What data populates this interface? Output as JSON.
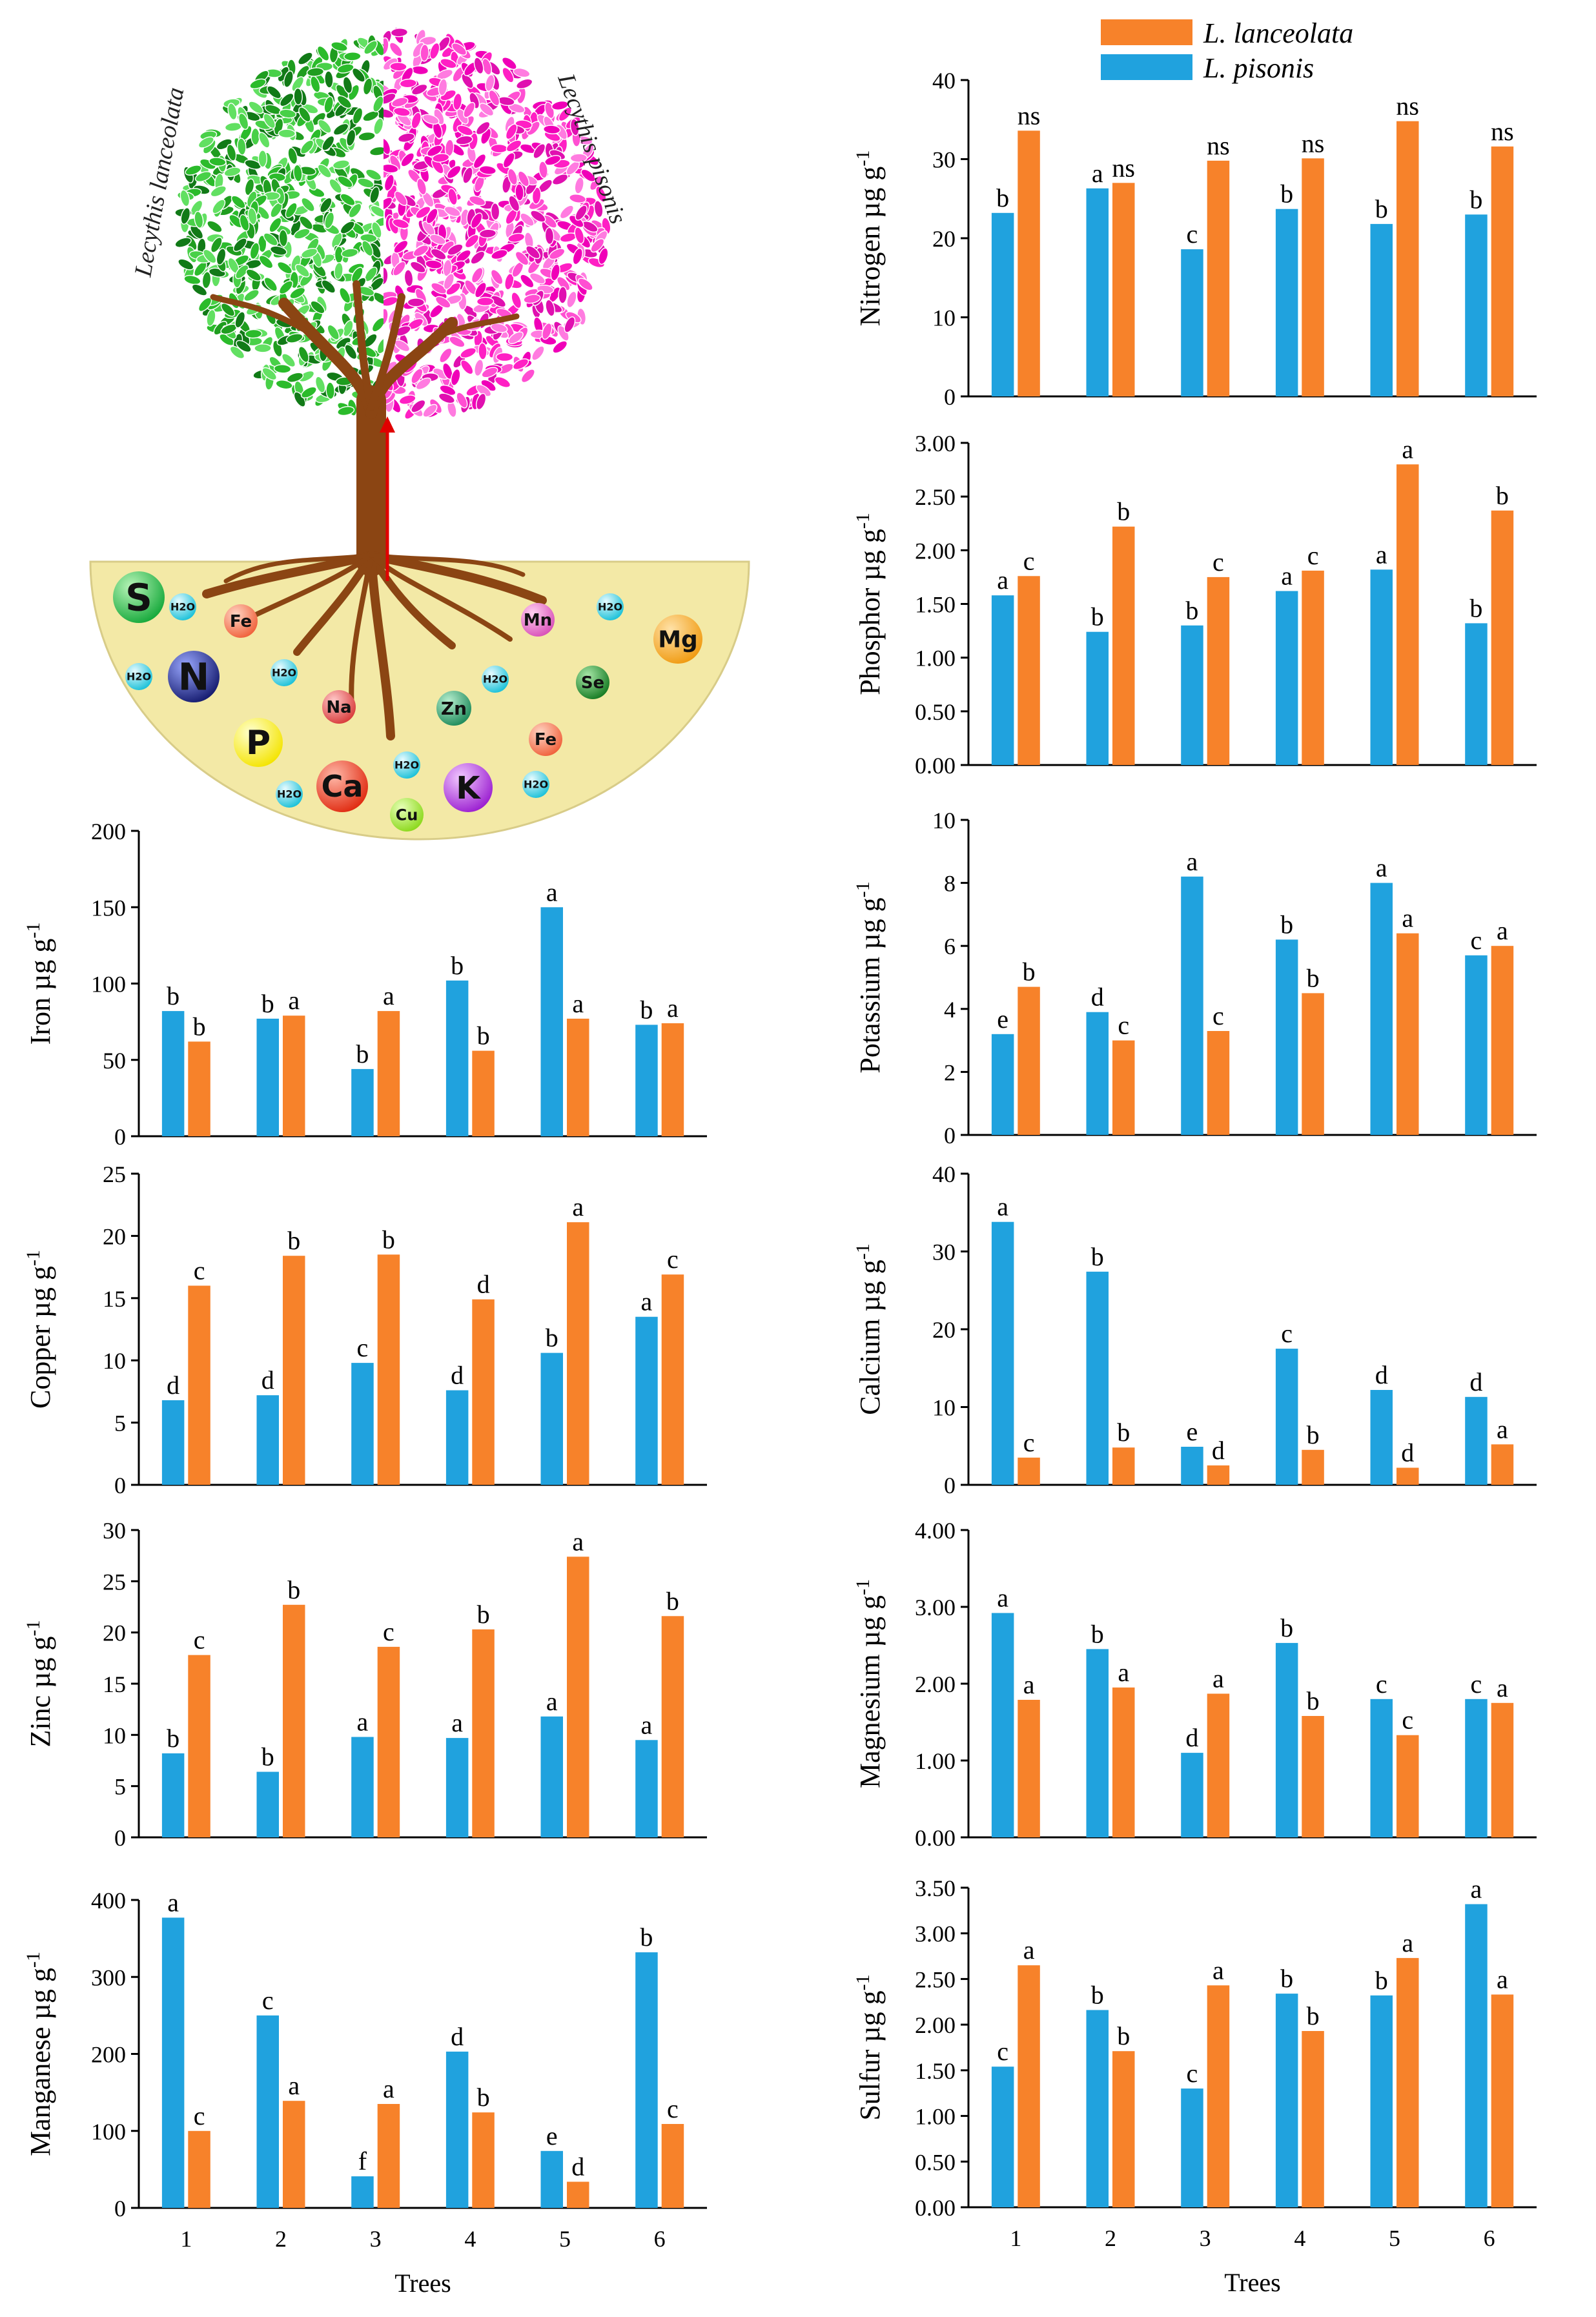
{
  "colors": {
    "lanceolata": "#F7822A",
    "pisonis": "#20A2DE",
    "soil": "#F3E9A6",
    "green_leaves": "#2BBB2B",
    "pink_leaves": "#FF1FC4",
    "trunk": "#8B4513"
  },
  "legend": {
    "lanceolata": "L. lanceolata",
    "pisonis": "L. pisonis"
  },
  "illustration": {
    "left_species": "Lecythis lanceolata",
    "right_species": "Lecythis pisonis",
    "elements": [
      "S",
      "H2O",
      "Fe",
      "N",
      "H2O",
      "H2O",
      "Na",
      "Zn",
      "H2O",
      "Mn",
      "Se",
      "Mg",
      "P",
      "Ca",
      "H2O",
      "K",
      "H2O",
      "Fe",
      "Cu",
      "H2O",
      "H2O"
    ]
  },
  "chart_data": [
    {
      "id": "nitrogen",
      "type": "bar",
      "ylabel": "Nitrogen µg g",
      "ylabel_sup": "-1",
      "ylim": [
        0,
        40
      ],
      "yticks": [
        "0",
        "10",
        "20",
        "30",
        "40"
      ],
      "categories": [
        "1",
        "2",
        "3",
        "4",
        "5",
        "6"
      ],
      "xlabel": "",
      "series": [
        {
          "name": "L. pisonis",
          "values": [
            23.2,
            26.3,
            18.6,
            23.7,
            21.8,
            23
          ]
        },
        {
          "name": "L. lanceolata",
          "values": [
            33.6,
            27,
            29.8,
            30.1,
            34.8,
            31.6
          ]
        }
      ],
      "letters_pisonis": [
        "b",
        "a",
        "c",
        "b",
        "b",
        "b"
      ],
      "letters_lanceolata": [
        "ns",
        "ns",
        "ns",
        "ns",
        "ns",
        "ns"
      ]
    },
    {
      "id": "phosphor",
      "type": "bar",
      "ylabel": "Phosphor µg g",
      "ylabel_sup": "-1",
      "ylim": [
        0,
        3
      ],
      "yticks": [
        "0.00",
        "0.50",
        "1.00",
        "1.50",
        "2.00",
        "2.50",
        "3.00"
      ],
      "categories": [
        "1",
        "2",
        "3",
        "4",
        "5",
        "6"
      ],
      "xlabel": "",
      "series": [
        {
          "name": "L. pisonis",
          "values": [
            1.58,
            1.24,
            1.3,
            1.62,
            1.82,
            1.32
          ]
        },
        {
          "name": "L. lanceolata",
          "values": [
            1.76,
            2.22,
            1.75,
            1.81,
            2.8,
            2.37
          ]
        }
      ],
      "letters_pisonis": [
        "a",
        "b",
        "b",
        "a",
        "a",
        "b"
      ],
      "letters_lanceolata": [
        "c",
        "b",
        "c",
        "c",
        "a",
        "b"
      ]
    },
    {
      "id": "iron",
      "type": "bar",
      "ylabel": "Iron µg g",
      "ylabel_sup": "-1",
      "ylim": [
        0,
        200
      ],
      "yticks": [
        "0",
        "50",
        "100",
        "150",
        "200"
      ],
      "categories": [
        "1",
        "2",
        "3",
        "4",
        "5",
        "6"
      ],
      "xlabel": "",
      "series": [
        {
          "name": "L. pisonis",
          "values": [
            82,
            77,
            44,
            102,
            150,
            73
          ]
        },
        {
          "name": "L. lanceolata",
          "values": [
            62,
            79,
            82,
            56,
            77,
            74
          ]
        }
      ],
      "letters_pisonis": [
        "b",
        "b",
        "b",
        "b",
        "a",
        "b"
      ],
      "letters_lanceolata": [
        "b",
        "a",
        "a",
        "b",
        "a",
        "a"
      ]
    },
    {
      "id": "potassium",
      "type": "bar",
      "ylabel": "Potassium µg g",
      "ylabel_sup": "-1",
      "ylim": [
        0,
        10
      ],
      "yticks": [
        "0",
        "2",
        "4",
        "6",
        "8",
        "10"
      ],
      "categories": [
        "1",
        "2",
        "3",
        "4",
        "5",
        "6"
      ],
      "xlabel": "",
      "series": [
        {
          "name": "L. pisonis",
          "values": [
            3.2,
            3.9,
            8.2,
            6.2,
            8,
            5.7
          ]
        },
        {
          "name": "L. lanceolata",
          "values": [
            4.7,
            3,
            3.3,
            4.5,
            6.4,
            6
          ]
        }
      ],
      "letters_pisonis": [
        "e",
        "d",
        "a",
        "b",
        "a",
        "c"
      ],
      "letters_lanceolata": [
        "b",
        "c",
        "c",
        "b",
        "a",
        "a"
      ]
    },
    {
      "id": "copper",
      "type": "bar",
      "ylabel": "Copper µg g",
      "ylabel_sup": "-1",
      "ylim": [
        0,
        25
      ],
      "yticks": [
        "0",
        "5",
        "10",
        "15",
        "20",
        "25"
      ],
      "categories": [
        "1",
        "2",
        "3",
        "4",
        "5",
        "6"
      ],
      "xlabel": "",
      "series": [
        {
          "name": "L. pisonis",
          "values": [
            6.8,
            7.2,
            9.8,
            7.6,
            10.6,
            13.5
          ]
        },
        {
          "name": "L. lanceolata",
          "values": [
            16,
            18.4,
            18.5,
            14.9,
            21.1,
            16.9
          ]
        }
      ],
      "letters_pisonis": [
        "d",
        "d",
        "c",
        "d",
        "b",
        "a"
      ],
      "letters_lanceolata": [
        "c",
        "b",
        "b",
        "d",
        "a",
        "c"
      ]
    },
    {
      "id": "calcium",
      "type": "bar",
      "ylabel": "Calcium µg g",
      "ylabel_sup": "-1",
      "ylim": [
        0,
        40
      ],
      "yticks": [
        "0",
        "10",
        "20",
        "30",
        "40"
      ],
      "categories": [
        "1",
        "2",
        "3",
        "4",
        "5",
        "6"
      ],
      "xlabel": "",
      "series": [
        {
          "name": "L. pisonis",
          "values": [
            33.8,
            27.4,
            4.9,
            17.5,
            12.2,
            11.3
          ]
        },
        {
          "name": "L. lanceolata",
          "values": [
            3.5,
            4.8,
            2.5,
            4.5,
            2.2,
            5.2
          ]
        }
      ],
      "letters_pisonis": [
        "a",
        "b",
        "e",
        "c",
        "d",
        "d"
      ],
      "letters_lanceolata": [
        "c",
        "b",
        "d",
        "b",
        "d",
        "a"
      ]
    },
    {
      "id": "zinc",
      "type": "bar",
      "ylabel": "Zinc µg g",
      "ylabel_sup": "-1",
      "ylim": [
        0,
        30
      ],
      "yticks": [
        "0",
        "5",
        "10",
        "15",
        "20",
        "25",
        "30"
      ],
      "categories": [
        "1",
        "2",
        "3",
        "4",
        "5",
        "6"
      ],
      "xlabel": "",
      "series": [
        {
          "name": "L. pisonis",
          "values": [
            8.2,
            6.4,
            9.8,
            9.7,
            11.8,
            9.5
          ]
        },
        {
          "name": "L. lanceolata",
          "values": [
            17.8,
            22.7,
            18.6,
            20.3,
            27.4,
            21.6
          ]
        }
      ],
      "letters_pisonis": [
        "b",
        "b",
        "a",
        "a",
        "a",
        "a"
      ],
      "letters_lanceolata": [
        "c",
        "b",
        "c",
        "b",
        "a",
        "b"
      ]
    },
    {
      "id": "magnesium",
      "type": "bar",
      "ylabel": "Magnesium µg g",
      "ylabel_sup": "-1",
      "ylim": [
        0,
        4
      ],
      "yticks": [
        "0.00",
        "1.00",
        "2.00",
        "3.00",
        "4.00"
      ],
      "categories": [
        "1",
        "2",
        "3",
        "4",
        "5",
        "6"
      ],
      "xlabel": "",
      "series": [
        {
          "name": "L. pisonis",
          "values": [
            2.92,
            2.45,
            1.1,
            2.53,
            1.8,
            1.8
          ]
        },
        {
          "name": "L. lanceolata",
          "values": [
            1.79,
            1.95,
            1.87,
            1.58,
            1.33,
            1.75
          ]
        }
      ],
      "letters_pisonis": [
        "a",
        "b",
        "d",
        "b",
        "c",
        "c"
      ],
      "letters_lanceolata": [
        "a",
        "a",
        "a",
        "b",
        "c",
        "a"
      ]
    },
    {
      "id": "manganese",
      "type": "bar",
      "ylabel": "Manganese µg g",
      "ylabel_sup": "-1",
      "ylim": [
        0,
        400
      ],
      "yticks": [
        "0",
        "100",
        "200",
        "300",
        "400"
      ],
      "categories": [
        "1",
        "2",
        "3",
        "4",
        "5",
        "6"
      ],
      "xlabel": "Trees",
      "series": [
        {
          "name": "L. pisonis",
          "values": [
            377,
            250,
            41,
            203,
            74,
            332
          ]
        },
        {
          "name": "L. lanceolata",
          "values": [
            100,
            139,
            135,
            124,
            34,
            109
          ]
        }
      ],
      "letters_pisonis": [
        "a",
        "c",
        "f",
        "d",
        "e",
        "b"
      ],
      "letters_lanceolata": [
        "c",
        "a",
        "a",
        "b",
        "d",
        "c"
      ]
    },
    {
      "id": "sulfur",
      "type": "bar",
      "ylabel": "Sulfur µg g",
      "ylabel_sup": "-1",
      "ylim": [
        0,
        3.5
      ],
      "yticks": [
        "0.00",
        "0.50",
        "1.00",
        "1.50",
        "2.00",
        "2.50",
        "3.00",
        "3.50"
      ],
      "categories": [
        "1",
        "2",
        "3",
        "4",
        "5",
        "6"
      ],
      "xlabel": "Trees",
      "series": [
        {
          "name": "L. pisonis",
          "values": [
            1.54,
            2.16,
            1.3,
            2.34,
            2.32,
            3.32
          ]
        },
        {
          "name": "L. lanceolata",
          "values": [
            2.65,
            1.71,
            2.43,
            1.93,
            2.73,
            2.33
          ]
        }
      ],
      "letters_pisonis": [
        "c",
        "b",
        "c",
        "b",
        "b",
        "a"
      ],
      "letters_lanceolata": [
        "a",
        "b",
        "a",
        "b",
        "a",
        "a"
      ]
    }
  ]
}
